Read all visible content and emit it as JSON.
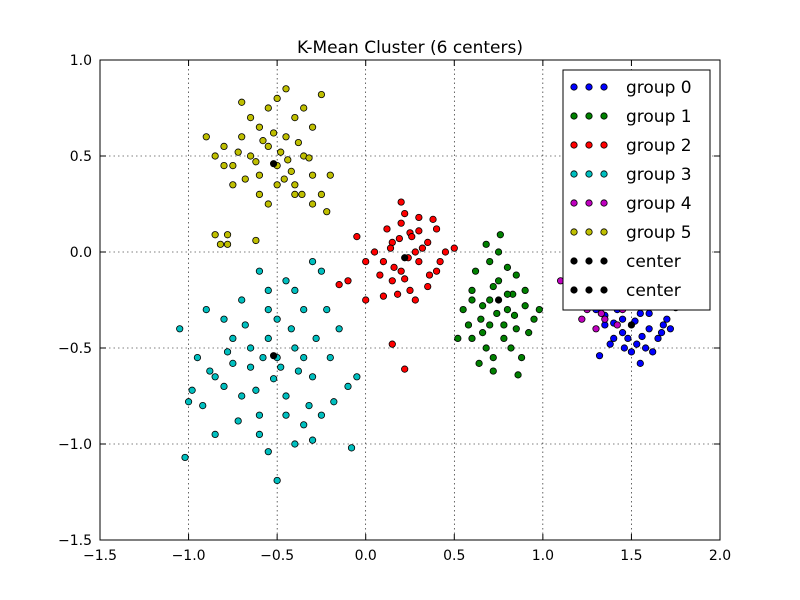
{
  "chart_data": {
    "type": "scatter",
    "title": "K-Mean Cluster (6 centers)",
    "xlabel": "",
    "ylabel": "",
    "xlim": [
      -1.5,
      2.0
    ],
    "ylim": [
      -1.5,
      1.0
    ],
    "grid": true,
    "legend_position": "top-right",
    "x_ticks": [
      -1.5,
      -1.0,
      -0.5,
      0.0,
      0.5,
      1.0,
      1.5,
      2.0
    ],
    "y_ticks": [
      -1.5,
      -1.0,
      -0.5,
      0.0,
      0.5,
      1.0
    ],
    "x_tick_labels": [
      "−1.5",
      "−1.0",
      "−0.5",
      "0.0",
      "0.5",
      "1.0",
      "1.5",
      "2.0"
    ],
    "y_tick_labels": [
      "−1.5",
      "−1.0",
      "−0.5",
      "0.0",
      "0.5",
      "1.0"
    ],
    "series": [
      {
        "name": "group 0",
        "color": "#0000ff",
        "points": [
          [
            1.3,
            -0.3
          ],
          [
            1.35,
            -0.38
          ],
          [
            1.4,
            -0.45
          ],
          [
            1.45,
            -0.35
          ],
          [
            1.5,
            -0.28
          ],
          [
            1.55,
            -0.32
          ],
          [
            1.6,
            -0.4
          ],
          [
            1.65,
            -0.45
          ],
          [
            1.7,
            -0.35
          ],
          [
            1.75,
            -0.29
          ],
          [
            1.68,
            -0.38
          ],
          [
            1.58,
            -0.5
          ],
          [
            1.5,
            -0.52
          ],
          [
            1.45,
            -0.42
          ],
          [
            1.38,
            -0.48
          ],
          [
            1.32,
            -0.54
          ],
          [
            1.55,
            -0.58
          ],
          [
            1.62,
            -0.52
          ],
          [
            1.72,
            -0.4
          ],
          [
            1.52,
            -0.36
          ],
          [
            1.42,
            -0.3
          ],
          [
            1.48,
            -0.45
          ],
          [
            1.6,
            -0.32
          ],
          [
            1.64,
            -0.28
          ],
          [
            1.56,
            -0.44
          ],
          [
            1.4,
            -0.37
          ],
          [
            1.46,
            -0.5
          ],
          [
            1.53,
            -0.48
          ],
          [
            1.67,
            -0.42
          ],
          [
            1.35,
            -0.33
          ]
        ]
      },
      {
        "name": "group 1",
        "color": "#008000",
        "points": [
          [
            0.55,
            -0.3
          ],
          [
            0.6,
            -0.2
          ],
          [
            0.65,
            -0.35
          ],
          [
            0.7,
            -0.25
          ],
          [
            0.75,
            -0.15
          ],
          [
            0.8,
            -0.3
          ],
          [
            0.85,
            -0.4
          ],
          [
            0.9,
            -0.2
          ],
          [
            0.95,
            -0.35
          ],
          [
            0.6,
            -0.45
          ],
          [
            0.68,
            -0.5
          ],
          [
            0.72,
            -0.55
          ],
          [
            0.78,
            -0.45
          ],
          [
            0.82,
            -0.5
          ],
          [
            0.88,
            -0.55
          ],
          [
            0.62,
            -0.1
          ],
          [
            0.7,
            -0.05
          ],
          [
            0.75,
            0.0
          ],
          [
            0.8,
            -0.08
          ],
          [
            0.85,
            -0.12
          ],
          [
            0.58,
            -0.38
          ],
          [
            0.66,
            -0.28
          ],
          [
            0.74,
            -0.32
          ],
          [
            0.83,
            -0.22
          ],
          [
            0.9,
            -0.28
          ],
          [
            0.98,
            -0.3
          ],
          [
            0.52,
            -0.45
          ],
          [
            0.64,
            -0.58
          ],
          [
            0.72,
            -0.62
          ],
          [
            0.86,
            -0.64
          ],
          [
            0.76,
            0.09
          ],
          [
            0.68,
            0.04
          ],
          [
            0.92,
            -0.42
          ],
          [
            0.6,
            -0.25
          ],
          [
            0.78,
            -0.38
          ],
          [
            0.72,
            -0.18
          ],
          [
            0.66,
            -0.42
          ],
          [
            0.84,
            -0.33
          ],
          [
            0.7,
            -0.38
          ],
          [
            0.8,
            -0.22
          ]
        ]
      },
      {
        "name": "group 2",
        "color": "#ff0000",
        "points": [
          [
            0.1,
            -0.05
          ],
          [
            0.15,
            0.05
          ],
          [
            0.2,
            -0.1
          ],
          [
            0.25,
            0.1
          ],
          [
            0.3,
            -0.05
          ],
          [
            0.35,
            0.05
          ],
          [
            0.4,
            -0.1
          ],
          [
            0.2,
            0.15
          ],
          [
            0.25,
            -0.2
          ],
          [
            0.3,
            0.18
          ],
          [
            0.15,
            -0.15
          ],
          [
            0.35,
            -0.18
          ],
          [
            0.4,
            0.12
          ],
          [
            0.05,
            0.0
          ],
          [
            0.45,
            0.0
          ],
          [
            0.12,
            0.12
          ],
          [
            0.22,
            0.2
          ],
          [
            0.28,
            -0.25
          ],
          [
            0.18,
            -0.22
          ],
          [
            0.32,
            0.02
          ],
          [
            0.08,
            -0.12
          ],
          [
            0.42,
            -0.05
          ],
          [
            0.5,
            0.02
          ],
          [
            0.2,
            0.26
          ],
          [
            0.0,
            -0.05
          ],
          [
            -0.05,
            0.08
          ],
          [
            -0.1,
            -0.15
          ],
          [
            -0.15,
            -0.17
          ],
          [
            0.16,
            -0.08
          ],
          [
            0.26,
            0.08
          ],
          [
            0.36,
            -0.12
          ],
          [
            0.14,
            0.02
          ],
          [
            0.3,
            0.11
          ],
          [
            0.24,
            -0.03
          ],
          [
            0.38,
            0.17
          ],
          [
            0.22,
            -0.14
          ],
          [
            0.0,
            -0.25
          ],
          [
            0.1,
            -0.23
          ],
          [
            0.15,
            -0.48
          ],
          [
            0.22,
            -0.61
          ],
          [
            0.28,
            0.0
          ],
          [
            0.19,
            0.07
          ]
        ]
      },
      {
        "name": "group 3",
        "color": "#00bfbf",
        "points": [
          [
            -1.05,
            -0.4
          ],
          [
            -1.0,
            -0.78
          ],
          [
            -1.02,
            -1.07
          ],
          [
            -0.95,
            -0.55
          ],
          [
            -0.9,
            -0.3
          ],
          [
            -0.85,
            -0.65
          ],
          [
            -0.8,
            -0.7
          ],
          [
            -0.75,
            -0.45
          ],
          [
            -0.7,
            -0.25
          ],
          [
            -0.65,
            -0.6
          ],
          [
            -0.6,
            -0.85
          ],
          [
            -0.55,
            -0.3
          ],
          [
            -0.5,
            -0.55
          ],
          [
            -0.45,
            -0.75
          ],
          [
            -0.4,
            -0.5
          ],
          [
            -0.35,
            -0.3
          ],
          [
            -0.3,
            -0.65
          ],
          [
            -0.25,
            -0.85
          ],
          [
            -0.2,
            -0.55
          ],
          [
            -0.15,
            -0.4
          ],
          [
            -0.1,
            -0.7
          ],
          [
            -0.05,
            -0.65
          ],
          [
            -0.08,
            -1.02
          ],
          [
            -0.5,
            -1.19
          ],
          [
            -0.55,
            -1.04
          ],
          [
            -0.6,
            -0.95
          ],
          [
            -0.4,
            -1.0
          ],
          [
            -0.35,
            -0.9
          ],
          [
            -0.3,
            -0.98
          ],
          [
            -0.45,
            -0.85
          ],
          [
            -0.65,
            -0.5
          ],
          [
            -0.7,
            -0.75
          ],
          [
            -0.75,
            -0.58
          ],
          [
            -0.8,
            -0.35
          ],
          [
            -0.55,
            -0.45
          ],
          [
            -0.5,
            -0.35
          ],
          [
            -0.4,
            -0.2
          ],
          [
            -0.3,
            -0.05
          ],
          [
            -0.25,
            -0.1
          ],
          [
            -0.45,
            -0.15
          ],
          [
            -0.6,
            -0.1
          ],
          [
            -0.55,
            -0.2
          ],
          [
            -0.48,
            -0.6
          ],
          [
            -0.38,
            -0.62
          ],
          [
            -0.28,
            -0.45
          ],
          [
            -0.18,
            -0.78
          ],
          [
            -0.22,
            -0.3
          ],
          [
            -0.62,
            -0.72
          ],
          [
            -0.72,
            -0.88
          ],
          [
            -0.85,
            -0.95
          ],
          [
            -0.92,
            -0.8
          ],
          [
            -0.98,
            -0.72
          ],
          [
            -0.42,
            -0.4
          ],
          [
            -0.52,
            -0.66
          ],
          [
            -0.35,
            -0.55
          ],
          [
            -0.58,
            -0.55
          ],
          [
            -0.68,
            -0.38
          ],
          [
            -0.78,
            -0.52
          ],
          [
            -0.88,
            -0.62
          ],
          [
            -0.32,
            -0.8
          ]
        ]
      },
      {
        "name": "group 4",
        "color": "#bf00bf",
        "points": [
          [
            1.1,
            -0.15
          ],
          [
            1.2,
            -0.2
          ],
          [
            1.25,
            -0.3
          ],
          [
            1.3,
            -0.25
          ],
          [
            1.35,
            -0.35
          ],
          [
            1.4,
            -0.25
          ],
          [
            1.45,
            -0.3
          ],
          [
            1.3,
            -0.4
          ],
          [
            1.22,
            -0.35
          ],
          [
            1.28,
            -0.18
          ],
          [
            1.15,
            -0.28
          ],
          [
            1.38,
            -0.28
          ],
          [
            1.42,
            -0.38
          ],
          [
            1.18,
            -0.22
          ],
          [
            1.33,
            -0.32
          ],
          [
            1.26,
            -0.24
          ]
        ]
      },
      {
        "name": "group 5",
        "color": "#bfbf00",
        "points": [
          [
            -0.9,
            0.6
          ],
          [
            -0.85,
            0.5
          ],
          [
            -0.8,
            0.55
          ],
          [
            -0.75,
            0.45
          ],
          [
            -0.7,
            0.6
          ],
          [
            -0.65,
            0.5
          ],
          [
            -0.6,
            0.4
          ],
          [
            -0.55,
            0.55
          ],
          [
            -0.5,
            0.45
          ],
          [
            -0.45,
            0.6
          ],
          [
            -0.4,
            0.35
          ],
          [
            -0.35,
            0.5
          ],
          [
            -0.3,
            0.4
          ],
          [
            -0.25,
            0.3
          ],
          [
            -0.2,
            0.4
          ],
          [
            -0.7,
            0.78
          ],
          [
            -0.65,
            0.7
          ],
          [
            -0.6,
            0.65
          ],
          [
            -0.55,
            0.75
          ],
          [
            -0.5,
            0.8
          ],
          [
            -0.45,
            0.85
          ],
          [
            -0.4,
            0.7
          ],
          [
            -0.35,
            0.75
          ],
          [
            -0.3,
            0.65
          ],
          [
            -0.25,
            0.82
          ],
          [
            -0.22,
            0.21
          ],
          [
            -0.3,
            0.25
          ],
          [
            -0.4,
            0.3
          ],
          [
            -0.5,
            0.35
          ],
          [
            -0.6,
            0.3
          ],
          [
            -0.55,
            0.25
          ],
          [
            -0.75,
            0.35
          ],
          [
            -0.8,
            0.45
          ],
          [
            -0.85,
            0.09
          ],
          [
            -0.82,
            0.04
          ],
          [
            -0.78,
            0.09
          ],
          [
            -0.78,
            0.04
          ],
          [
            -0.68,
            0.38
          ],
          [
            -0.62,
            0.47
          ],
          [
            -0.48,
            0.52
          ],
          [
            -0.42,
            0.42
          ],
          [
            -0.38,
            0.57
          ],
          [
            -0.32,
            0.49
          ],
          [
            -0.58,
            0.58
          ],
          [
            -0.52,
            0.62
          ],
          [
            -0.72,
            0.52
          ],
          [
            -0.62,
            0.06
          ],
          [
            -0.46,
            0.38
          ],
          [
            -0.36,
            0.3
          ],
          [
            -0.44,
            0.48
          ]
        ]
      },
      {
        "name": "center",
        "color": "#000000",
        "points": [
          [
            1.5,
            -0.38
          ],
          [
            0.75,
            -0.25
          ],
          [
            0.22,
            -0.03
          ],
          [
            -0.52,
            -0.54
          ],
          [
            1.27,
            -0.28
          ],
          [
            -0.52,
            0.46
          ]
        ]
      },
      {
        "name": "center",
        "color": "#000000",
        "points": []
      }
    ]
  }
}
